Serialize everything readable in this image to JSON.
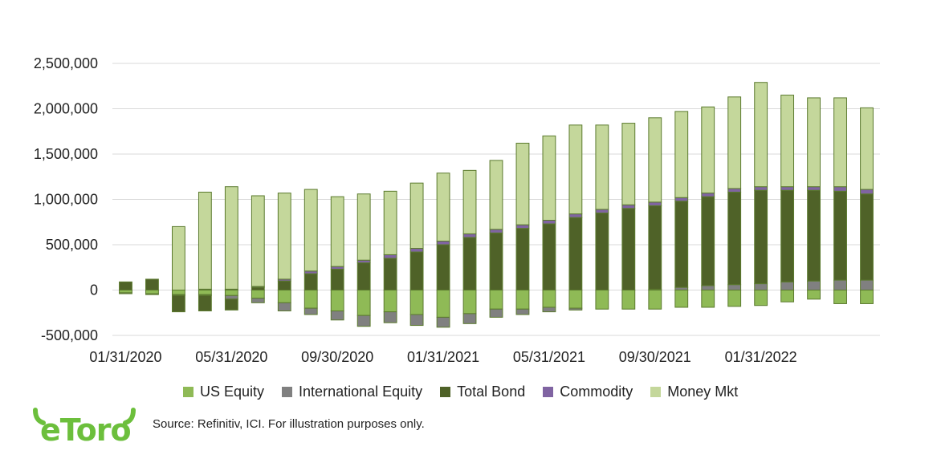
{
  "chart_data": {
    "type": "bar",
    "stacked": true,
    "categories": [
      "01/31/2020",
      "02/29/2020",
      "03/31/2020",
      "04/30/2020",
      "05/31/2020",
      "06/30/2020",
      "07/31/2020",
      "08/31/2020",
      "09/30/2020",
      "10/31/2020",
      "11/30/2020",
      "12/31/2020",
      "01/31/2021",
      "02/28/2021",
      "03/31/2021",
      "04/30/2021",
      "05/31/2021",
      "06/30/2021",
      "07/31/2021",
      "08/31/2021",
      "09/30/2021",
      "10/31/2021",
      "11/30/2021",
      "12/31/2021",
      "01/31/2022",
      "02/28/2022",
      "03/31/2022",
      "04/30/2022",
      "05/31/2022"
    ],
    "tick_labels": [
      "01/31/2020",
      "05/31/2020",
      "09/30/2020",
      "01/31/2021",
      "05/31/2021",
      "09/30/2021",
      "01/31/2022"
    ],
    "ylim": [
      -500000,
      2500000
    ],
    "yticks": [
      -500000,
      0,
      500000,
      1000000,
      1500000,
      2000000,
      2500000
    ],
    "ytick_labels": [
      "-500,000",
      "0",
      "500,000",
      "1,000,000",
      "1,500,000",
      "2,000,000",
      "2,500,000"
    ],
    "grid": true,
    "legend_position": "bottom",
    "series": [
      {
        "name": "US Equity",
        "color": "#8fba56",
        "values": [
          -30000,
          -40000,
          -50000,
          -50000,
          -60000,
          -90000,
          -140000,
          -200000,
          -230000,
          -280000,
          -240000,
          -270000,
          -300000,
          -260000,
          -210000,
          -210000,
          -190000,
          -200000,
          -210000,
          -210000,
          -210000,
          -190000,
          -190000,
          -180000,
          -170000,
          -130000,
          -100000,
          -150000,
          -150000
        ]
      },
      {
        "name": "International Equity",
        "color": "#808080",
        "values": [
          -10000,
          -10000,
          -10000,
          -10000,
          -40000,
          -50000,
          -90000,
          -70000,
          -100000,
          -120000,
          -120000,
          -120000,
          -110000,
          -110000,
          -90000,
          -60000,
          -50000,
          -20000,
          0,
          0,
          10000,
          30000,
          50000,
          60000,
          70000,
          90000,
          100000,
          110000,
          110000
        ]
      },
      {
        "name": "Total Bond",
        "color": "#4f6228",
        "values": [
          90000,
          120000,
          -180000,
          -170000,
          -120000,
          30000,
          100000,
          180000,
          230000,
          300000,
          350000,
          420000,
          500000,
          580000,
          630000,
          680000,
          730000,
          800000,
          850000,
          900000,
          920000,
          950000,
          980000,
          1020000,
          1030000,
          1010000,
          1000000,
          980000,
          950000
        ]
      },
      {
        "name": "Commodity",
        "color": "#8064a2",
        "values": [
          0,
          0,
          0,
          10000,
          10000,
          10000,
          20000,
          30000,
          30000,
          30000,
          40000,
          40000,
          40000,
          40000,
          40000,
          40000,
          40000,
          40000,
          40000,
          40000,
          40000,
          40000,
          40000,
          40000,
          40000,
          40000,
          40000,
          50000,
          50000
        ]
      },
      {
        "name": "Money Mkt",
        "color": "#c4d79b",
        "values": [
          0,
          0,
          700000,
          1070000,
          1130000,
          1000000,
          950000,
          900000,
          770000,
          730000,
          700000,
          720000,
          750000,
          700000,
          760000,
          900000,
          930000,
          980000,
          930000,
          900000,
          930000,
          950000,
          950000,
          1010000,
          1150000,
          1010000,
          980000,
          980000,
          900000
        ]
      }
    ]
  },
  "footer": {
    "logo_text": "eToro",
    "source": "Source: Refinitiv, ICI. For illustration purposes only."
  }
}
